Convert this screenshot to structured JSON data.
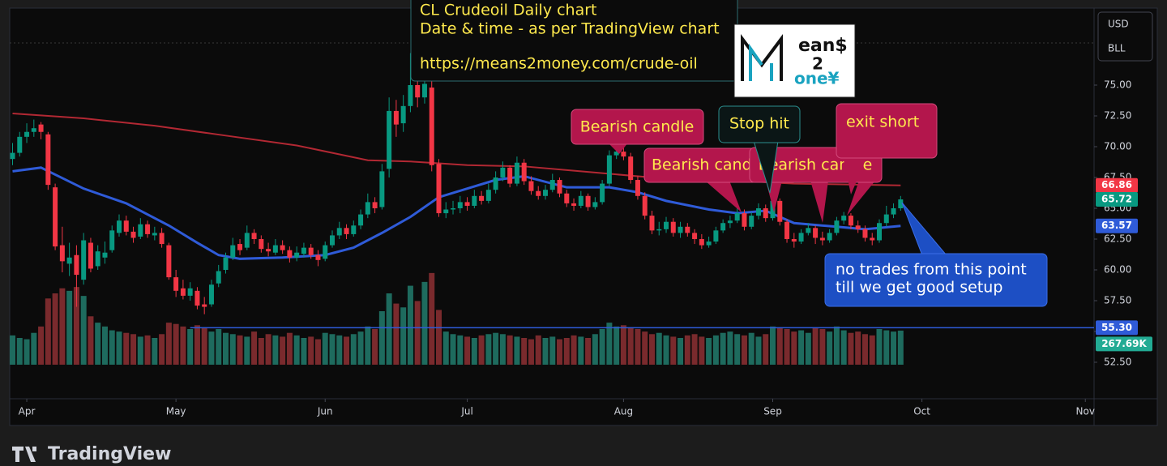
{
  "chart_data": {
    "type": "candlestick",
    "scale_header": {
      "currency": "USD",
      "unit": "BLL"
    },
    "brand": "TradingView",
    "info_lines": [
      "CL Crudeoil Daily chart",
      "Date & time - as per TradingView chart",
      "https://means2money.com/crude-oil"
    ],
    "logo": [
      "ean$",
      "2",
      "one¥"
    ],
    "callouts": [
      {
        "text": "Bearish candle"
      },
      {
        "text": "Bearish candle"
      },
      {
        "text": "Bearish candle"
      },
      {
        "text": "Stop hit"
      },
      {
        "text": "exit short"
      }
    ],
    "note_lines": [
      "no trades from this point",
      "till we get good setup"
    ],
    "xlim": [
      -0.4,
      152
    ],
    "xticks": [
      {
        "value": 2,
        "label": "Apr"
      },
      {
        "value": 23,
        "label": "May"
      },
      {
        "value": 44,
        "label": "Jun"
      },
      {
        "value": 64,
        "label": "Jul"
      },
      {
        "value": 86,
        "label": "Aug"
      },
      {
        "value": 107,
        "label": "Sep"
      },
      {
        "value": 128,
        "label": "Oct"
      },
      {
        "value": 151,
        "label": "Nov"
      }
    ],
    "ylim": [
      49.67,
      81.25
    ],
    "yticks": [
      {
        "value": 52.5,
        "label": "52.50"
      },
      {
        "value": 55,
        "label": "55.00"
      },
      {
        "value": 57.5,
        "label": "57.50"
      },
      {
        "value": 60,
        "label": "60.00"
      },
      {
        "value": 62.5,
        "label": "62.50"
      },
      {
        "value": 65,
        "label": "65.00"
      },
      {
        "value": 67.5,
        "label": "67.50"
      },
      {
        "value": 70,
        "label": "70.00"
      },
      {
        "value": 72.5,
        "label": "72.50"
      },
      {
        "value": 75,
        "label": "75.00"
      }
    ],
    "up_color": "#089981",
    "down_color": "#f23645",
    "categories": [
      null,
      null,
      null,
      null,
      null,
      null,
      null,
      null,
      null,
      null,
      null,
      null,
      null,
      null,
      null,
      null,
      null,
      null,
      null,
      null,
      null,
      null,
      null,
      null,
      null,
      null,
      null,
      null,
      null,
      null,
      null,
      null,
      null,
      null,
      null,
      null,
      null,
      null,
      null,
      null,
      null,
      null,
      null,
      null,
      null,
      null,
      null,
      null,
      null,
      null,
      null,
      null,
      null,
      null,
      null,
      null,
      null,
      null,
      null,
      null,
      null,
      null,
      null,
      null,
      null,
      null,
      null,
      null,
      null,
      null,
      null,
      null,
      null,
      null,
      null,
      null,
      null,
      null,
      null,
      null,
      null,
      null,
      null,
      null,
      null,
      null,
      null,
      null,
      null,
      null,
      null,
      null,
      null,
      null,
      null,
      null,
      null,
      null,
      null,
      null,
      null,
      null,
      null,
      null,
      null,
      null,
      null,
      null,
      null,
      null,
      null,
      null,
      null,
      null,
      null,
      null,
      null,
      null,
      null,
      null,
      null,
      null,
      null,
      null,
      null,
      null
    ],
    "ohlc": [
      [
        69.0,
        70.3,
        68.5,
        69.5
      ],
      [
        69.5,
        71.2,
        69.2,
        70.8
      ],
      [
        70.8,
        71.9,
        70.3,
        71.2
      ],
      [
        71.2,
        72.2,
        70.8,
        71.5
      ],
      [
        71.8,
        72.0,
        70.6,
        71.2
      ],
      [
        71.0,
        71.2,
        66.5,
        66.9
      ],
      [
        66.7,
        67.0,
        61.6,
        61.9
      ],
      [
        62.0,
        63.5,
        59.8,
        60.7
      ],
      [
        60.5,
        62.2,
        59.5,
        61.0
      ],
      [
        61.2,
        62.0,
        57.0,
        59.6
      ],
      [
        59.2,
        63.0,
        58.8,
        62.4
      ],
      [
        62.2,
        62.6,
        59.8,
        60.1
      ],
      [
        60.3,
        62.0,
        60.0,
        61.5
      ],
      [
        61.0,
        62.3,
        60.5,
        61.4
      ],
      [
        61.6,
        63.6,
        61.4,
        63.2
      ],
      [
        63.0,
        64.5,
        62.7,
        64.0
      ],
      [
        64.0,
        64.4,
        62.8,
        63.1
      ],
      [
        63.1,
        63.5,
        62.2,
        62.6
      ],
      [
        62.7,
        64.2,
        62.5,
        63.7
      ],
      [
        63.7,
        64.0,
        62.6,
        62.9
      ],
      [
        62.8,
        63.5,
        62.4,
        63.0
      ],
      [
        63.0,
        63.4,
        61.8,
        62.1
      ],
      [
        62.0,
        62.2,
        59.2,
        59.4
      ],
      [
        59.4,
        60.0,
        57.8,
        58.3
      ],
      [
        58.5,
        59.2,
        57.6,
        57.9
      ],
      [
        57.9,
        59.0,
        57.5,
        58.5
      ],
      [
        58.3,
        58.6,
        56.8,
        57.1
      ],
      [
        57.2,
        57.8,
        56.4,
        57.0
      ],
      [
        57.2,
        59.2,
        57.0,
        58.8
      ],
      [
        58.9,
        60.4,
        58.6,
        59.9
      ],
      [
        60.0,
        61.4,
        59.7,
        61.0
      ],
      [
        61.0,
        62.6,
        60.8,
        62.0
      ],
      [
        62.1,
        62.5,
        61.2,
        61.6
      ],
      [
        61.8,
        63.6,
        61.6,
        63.0
      ],
      [
        63.0,
        63.3,
        62.1,
        62.5
      ],
      [
        62.5,
        62.8,
        61.4,
        61.7
      ],
      [
        61.7,
        62.2,
        61.1,
        61.5
      ],
      [
        61.4,
        62.5,
        61.2,
        62.0
      ],
      [
        62.0,
        62.4,
        61.3,
        61.6
      ],
      [
        61.6,
        61.9,
        60.6,
        61.0
      ],
      [
        61.0,
        61.9,
        60.7,
        61.4
      ],
      [
        61.3,
        62.2,
        61.0,
        61.8
      ],
      [
        61.8,
        62.1,
        60.9,
        61.2
      ],
      [
        61.2,
        61.6,
        60.3,
        60.8
      ],
      [
        60.9,
        62.3,
        60.7,
        62.0
      ],
      [
        62.0,
        63.2,
        61.8,
        62.8
      ],
      [
        62.8,
        63.9,
        62.5,
        63.4
      ],
      [
        63.4,
        63.7,
        62.5,
        62.9
      ],
      [
        62.9,
        64.0,
        62.7,
        63.6
      ],
      [
        63.6,
        64.9,
        63.3,
        64.5
      ],
      [
        64.5,
        66.2,
        64.2,
        65.5
      ],
      [
        65.5,
        65.9,
        64.6,
        65.0
      ],
      [
        65.1,
        68.6,
        64.9,
        68.0
      ],
      [
        68.2,
        74.0,
        67.5,
        72.9
      ],
      [
        72.9,
        73.8,
        70.8,
        71.8
      ],
      [
        71.9,
        74.2,
        71.2,
        73.3
      ],
      [
        73.3,
        77.6,
        72.8,
        75.0
      ],
      [
        75.0,
        75.6,
        73.2,
        74.0
      ],
      [
        74.0,
        78.0,
        73.5,
        75.1
      ],
      [
        74.8,
        75.4,
        68.0,
        68.5
      ],
      [
        68.6,
        69.0,
        64.3,
        64.6
      ],
      [
        64.6,
        65.5,
        64.2,
        64.9
      ],
      [
        64.9,
        65.6,
        64.5,
        65.0
      ],
      [
        65.0,
        66.0,
        64.6,
        65.5
      ],
      [
        65.5,
        65.9,
        64.8,
        65.2
      ],
      [
        65.2,
        66.5,
        65.0,
        66.0
      ],
      [
        66.0,
        66.4,
        65.3,
        65.6
      ],
      [
        65.6,
        67.0,
        65.4,
        66.5
      ],
      [
        66.5,
        68.0,
        66.2,
        67.5
      ],
      [
        67.5,
        68.8,
        67.2,
        68.3
      ],
      [
        68.3,
        68.5,
        66.7,
        67.0
      ],
      [
        67.0,
        69.2,
        66.8,
        68.7
      ],
      [
        68.7,
        69.0,
        66.9,
        67.2
      ],
      [
        67.2,
        67.6,
        66.1,
        66.4
      ],
      [
        66.4,
        66.8,
        65.7,
        66.0
      ],
      [
        66.0,
        66.9,
        65.7,
        66.5
      ],
      [
        66.5,
        67.8,
        66.3,
        67.3
      ],
      [
        67.3,
        67.5,
        65.9,
        66.2
      ],
      [
        66.2,
        66.5,
        65.1,
        65.4
      ],
      [
        65.4,
        65.8,
        64.8,
        65.2
      ],
      [
        65.2,
        66.4,
        65.0,
        66.0
      ],
      [
        66.0,
        66.2,
        64.8,
        65.1
      ],
      [
        65.1,
        65.9,
        64.9,
        65.5
      ],
      [
        65.5,
        67.3,
        65.3,
        67.0
      ],
      [
        67.0,
        69.7,
        66.8,
        69.3
      ],
      [
        69.3,
        70.4,
        69.0,
        69.6
      ],
      [
        69.6,
        70.2,
        68.9,
        69.2
      ],
      [
        69.2,
        69.5,
        67.0,
        67.3
      ],
      [
        67.3,
        67.6,
        65.7,
        66.0
      ],
      [
        66.0,
        66.3,
        64.1,
        64.4
      ],
      [
        64.4,
        64.8,
        62.9,
        63.2
      ],
      [
        63.2,
        63.9,
        62.8,
        63.3
      ],
      [
        63.3,
        64.3,
        63.0,
        63.9
      ],
      [
        63.9,
        64.2,
        62.7,
        63.0
      ],
      [
        63.0,
        63.9,
        62.6,
        63.5
      ],
      [
        63.5,
        63.8,
        62.7,
        63.0
      ],
      [
        63.0,
        63.3,
        62.1,
        62.5
      ],
      [
        62.5,
        62.9,
        61.7,
        62.0
      ],
      [
        62.0,
        62.7,
        61.8,
        62.3
      ],
      [
        62.3,
        63.5,
        62.1,
        63.2
      ],
      [
        63.2,
        64.1,
        63.0,
        63.8
      ],
      [
        63.8,
        64.4,
        63.4,
        64.0
      ],
      [
        64.0,
        65.0,
        63.8,
        64.6
      ],
      [
        64.6,
        64.9,
        63.2,
        63.5
      ],
      [
        63.5,
        64.7,
        63.3,
        64.4
      ],
      [
        64.4,
        65.4,
        64.1,
        65.0
      ],
      [
        65.0,
        65.3,
        63.9,
        64.2
      ],
      [
        64.2,
        66.0,
        64.0,
        65.6
      ],
      [
        65.6,
        65.8,
        63.6,
        63.9
      ],
      [
        63.9,
        64.1,
        62.2,
        62.5
      ],
      [
        62.5,
        63.0,
        61.8,
        62.3
      ],
      [
        62.3,
        63.3,
        62.1,
        63.0
      ],
      [
        63.0,
        63.8,
        62.8,
        63.4
      ],
      [
        63.4,
        63.6,
        62.1,
        62.6
      ],
      [
        62.6,
        63.1,
        62.0,
        62.4
      ],
      [
        62.4,
        63.3,
        62.2,
        63.0
      ],
      [
        63.0,
        64.3,
        62.8,
        64.0
      ],
      [
        64.0,
        64.7,
        63.7,
        64.4
      ],
      [
        64.4,
        64.6,
        63.3,
        63.6
      ],
      [
        63.6,
        64.0,
        63.0,
        63.3
      ],
      [
        63.3,
        63.6,
        62.3,
        62.6
      ],
      [
        62.6,
        63.0,
        62.0,
        62.4
      ],
      [
        62.4,
        64.1,
        62.2,
        63.8
      ],
      [
        63.8,
        65.2,
        63.5,
        64.5
      ],
      [
        64.5,
        65.4,
        64.2,
        65.0
      ],
      [
        65.0,
        66.0,
        64.8,
        65.72
      ]
    ],
    "volume": {
      "lim": [
        0,
        2800
      ],
      "up_color": "#1e6b5e",
      "down_color": "#7a2a2d",
      "values": [
        230,
        210,
        200,
        250,
        300,
        520,
        560,
        600,
        580,
        610,
        540,
        380,
        330,
        300,
        270,
        260,
        250,
        240,
        220,
        230,
        210,
        240,
        330,
        320,
        300,
        280,
        310,
        290,
        260,
        280,
        250,
        240,
        230,
        220,
        260,
        210,
        240,
        230,
        220,
        250,
        230,
        210,
        220,
        200,
        250,
        240,
        230,
        220,
        240,
        260,
        300,
        280,
        420,
        560,
        480,
        450,
        620,
        500,
        650,
        720,
        430,
        260,
        240,
        230,
        220,
        210,
        230,
        240,
        250,
        240,
        230,
        220,
        210,
        200,
        230,
        210,
        220,
        200,
        210,
        230,
        220,
        210,
        240,
        280,
        330,
        300,
        310,
        290,
        280,
        260,
        240,
        250,
        230,
        220,
        210,
        230,
        240,
        220,
        210,
        230,
        250,
        260,
        240,
        230,
        250,
        220,
        240,
        300,
        290,
        280,
        260,
        270,
        250,
        290,
        280,
        260,
        300,
        270,
        250,
        260,
        240,
        230,
        280,
        270,
        260,
        267.69
      ],
      "tag": {
        "value": 267.69,
        "label": "267.69K",
        "color": "#22ab94"
      }
    },
    "moving_averages": [
      {
        "color": "#b22833",
        "x": [
          0,
          10,
          20,
          30,
          40,
          50,
          56,
          64,
          72,
          80,
          90,
          100,
          110,
          125
        ],
        "values": [
          72.7,
          72.3,
          71.7,
          70.9,
          70.1,
          68.9,
          68.8,
          68.5,
          68.4,
          68.0,
          67.5,
          67.3,
          67.0,
          66.86
        ]
      },
      {
        "color": "#2f5bd8",
        "x": [
          0,
          4,
          10,
          16,
          22,
          26,
          29,
          32,
          38,
          44,
          48,
          52,
          56,
          60,
          64,
          68,
          72,
          78,
          84,
          88,
          92,
          98,
          102,
          106,
          110,
          116,
          120,
          125
        ],
        "values": [
          68.0,
          68.3,
          66.6,
          65.4,
          63.6,
          62.2,
          61.2,
          60.9,
          61.0,
          61.2,
          61.8,
          63.0,
          64.3,
          65.9,
          66.6,
          67.3,
          67.6,
          66.7,
          66.7,
          66.3,
          65.6,
          64.9,
          64.6,
          64.8,
          63.8,
          63.5,
          63.3,
          63.57
        ]
      }
    ],
    "hline": {
      "value": 55.3,
      "label": "55.30",
      "from_x": 25,
      "color": "#2f5bd8"
    },
    "price_tags": [
      {
        "value": 66.86,
        "color": "#f23645"
      },
      {
        "value": 65.72,
        "color": "#089981"
      },
      {
        "value": 63.57,
        "color": "#2f5bd8"
      }
    ]
  }
}
